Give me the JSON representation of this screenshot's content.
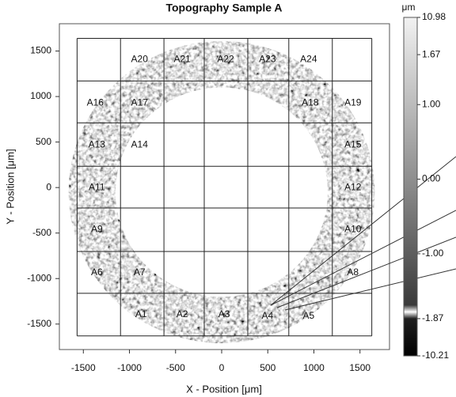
{
  "chart_data": {
    "type": "topography",
    "title": "Topography Sample A",
    "x_label": "X - Position [μm]",
    "y_label": "Y - Position [μm]",
    "xlim": [
      -1760,
      1820
    ],
    "ylim": [
      -1780,
      1800
    ],
    "xticks": [
      -1500,
      -1000,
      -500,
      0,
      500,
      1000,
      1500
    ],
    "yticks": [
      -1500,
      -1000,
      -500,
      0,
      500,
      1000,
      1500
    ],
    "ring": {
      "center": [
        0,
        -50
      ],
      "outer_radius": 1660,
      "inner_radius": 1150
    },
    "cell_grid": {
      "x": [
        -1568,
        -1097,
        -626,
        -189,
        283,
        728,
        1200,
        1628
      ],
      "y": [
        1639,
        1171,
        711,
        234,
        -225,
        -702,
        -1162,
        -1630
      ]
    },
    "annotations": [
      {
        "text": "A1",
        "x": -874,
        "y": -1396
      },
      {
        "text": "A2",
        "x": -428,
        "y": -1396
      },
      {
        "text": "A3",
        "x": 26,
        "y": -1396
      },
      {
        "text": "A4",
        "x": 497,
        "y": -1413
      },
      {
        "text": "A5",
        "x": 943,
        "y": -1413
      },
      {
        "text": "A6",
        "x": -1354,
        "y": -937
      },
      {
        "text": "A7",
        "x": -891,
        "y": -937
      },
      {
        "text": "A8",
        "x": 1423,
        "y": -937
      },
      {
        "text": "A9",
        "x": -1354,
        "y": -460
      },
      {
        "text": "A10",
        "x": 1423,
        "y": -460
      },
      {
        "text": "A11",
        "x": -1354,
        "y": 0
      },
      {
        "text": "A12",
        "x": 1423,
        "y": 0
      },
      {
        "text": "A13",
        "x": -1354,
        "y": 468
      },
      {
        "text": "A14",
        "x": -891,
        "y": 468
      },
      {
        "text": "A15",
        "x": 1423,
        "y": 468
      },
      {
        "text": "A16",
        "x": -1371,
        "y": 928
      },
      {
        "text": "A17",
        "x": -891,
        "y": 928
      },
      {
        "text": "A18",
        "x": 960,
        "y": 928
      },
      {
        "text": "A19",
        "x": 1423,
        "y": 928
      },
      {
        "text": "A20",
        "x": -891,
        "y": 1405
      },
      {
        "text": "A21",
        "x": -428,
        "y": 1405
      },
      {
        "text": "A22",
        "x": 43,
        "y": 1405
      },
      {
        "text": "A23",
        "x": 497,
        "y": 1405
      },
      {
        "text": "A24",
        "x": 943,
        "y": 1405
      }
    ],
    "colorbar": {
      "unit": "μm",
      "range": [
        -10.21,
        10.98
      ],
      "linear_range": [
        -1.87,
        1.67
      ],
      "ticks": [
        10.98,
        1.67,
        {
          "value": 1,
          "label": "1.00"
        },
        {
          "value": 0,
          "label": "0.00"
        },
        {
          "value": -1,
          "label": "-1.00"
        },
        -1.87,
        -10.21
      ]
    }
  }
}
